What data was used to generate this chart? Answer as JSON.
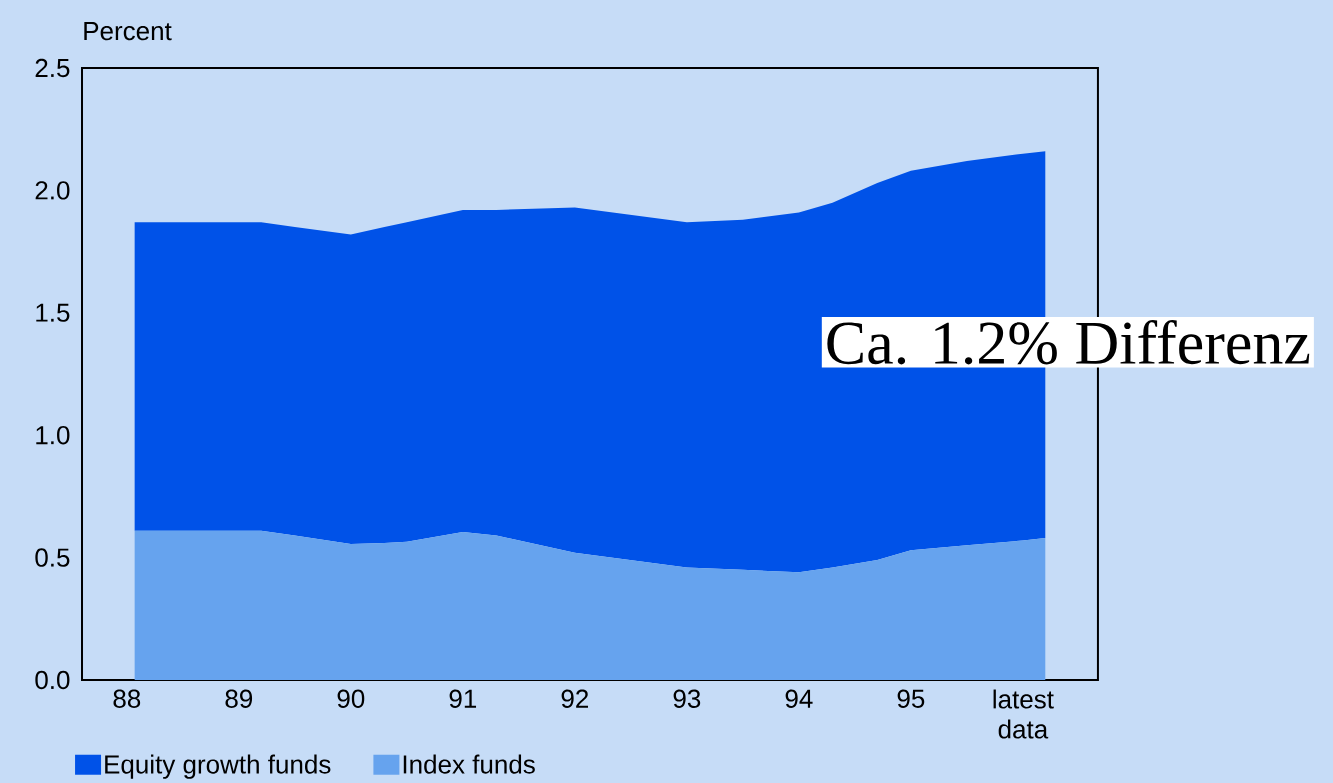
{
  "chart_data": {
    "type": "area",
    "stacked": true,
    "ylabel": "Percent",
    "x": [
      88.07,
      89.2,
      89.5,
      90,
      90.3,
      90.5,
      91,
      91.3,
      92,
      92.5,
      93,
      93.5,
      94,
      94.3,
      94.7,
      95,
      95.5,
      96,
      96.2
    ],
    "series": [
      {
        "name": "Index funds",
        "color": "#66a3ee",
        "values": [
          0.61,
          0.61,
          0.59,
          0.555,
          0.56,
          0.565,
          0.605,
          0.59,
          0.52,
          0.49,
          0.46,
          0.45,
          0.44,
          0.46,
          0.49,
          0.53,
          0.55,
          0.57,
          0.58
        ]
      },
      {
        "name": "Equity growth funds",
        "color": "#0052e8",
        "values": [
          1.26,
          1.26,
          1.26,
          1.265,
          1.29,
          1.305,
          1.315,
          1.33,
          1.41,
          1.41,
          1.41,
          1.43,
          1.47,
          1.49,
          1.54,
          1.55,
          1.57,
          1.58,
          1.58
        ]
      }
    ],
    "xlim": [
      87.6,
      96.67
    ],
    "xticks": [
      {
        "value": 88,
        "label": "88"
      },
      {
        "value": 89,
        "label": "89"
      },
      {
        "value": 90,
        "label": "90"
      },
      {
        "value": 91,
        "label": "91"
      },
      {
        "value": 92,
        "label": "92"
      },
      {
        "value": 93,
        "label": "93"
      },
      {
        "value": 94,
        "label": "94"
      },
      {
        "value": 95,
        "label": "95"
      },
      {
        "value": 96,
        "label": "latest data"
      }
    ],
    "ylim": [
      0,
      2.5
    ],
    "yticks": [
      {
        "value": 0,
        "label": "0.0"
      },
      {
        "value": 0.5,
        "label": "0.5"
      },
      {
        "value": 1,
        "label": "1.0"
      },
      {
        "value": 1.5,
        "label": "1.5"
      },
      {
        "value": 2,
        "label": "2.0"
      },
      {
        "value": 2.5,
        "label": "2.5"
      }
    ],
    "legend": "bottom",
    "annotations": [
      "Ca. 1.2% Differenz"
    ]
  }
}
